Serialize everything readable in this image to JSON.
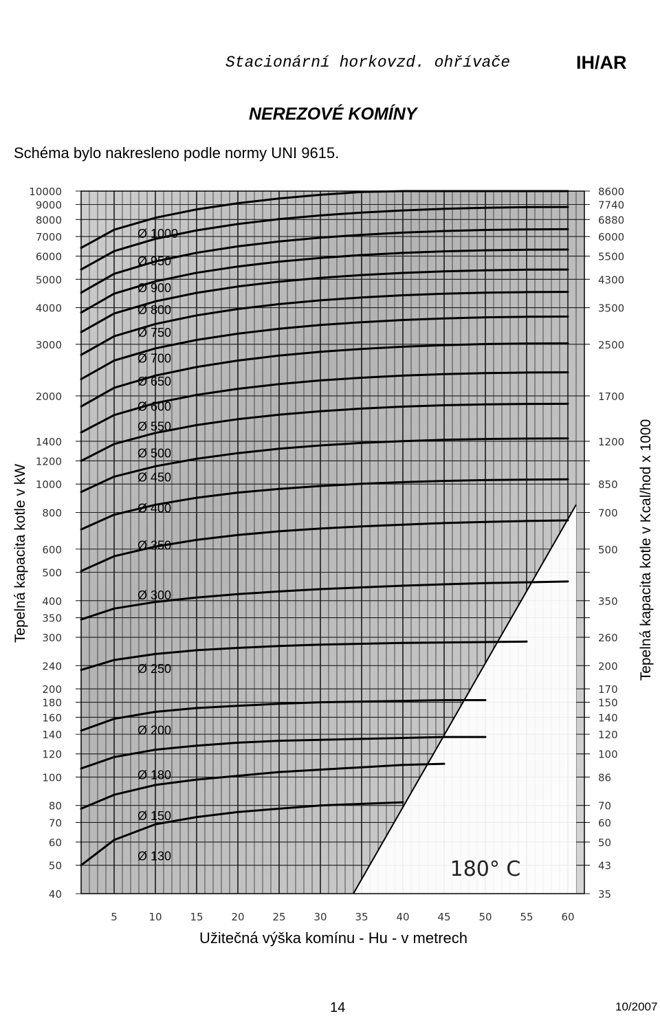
{
  "header": {
    "title": "Stacionární horkovzd. ohřívače",
    "brand": "IH/AR",
    "section": "NEREZOVÉ KOMÍNY",
    "note": "Schéma bylo nakresleno podle normy UNI 9615."
  },
  "footer": {
    "page": "14",
    "date": "10/2007"
  },
  "chart_data": {
    "type": "line",
    "title": "",
    "xlabel": "Užitečná výška komínu - Hu - v metrech",
    "ylabel": "Tepelná kapacita kotle v kW",
    "ylabel_right": "Tepelná kapacita kotle v Kcal/hod x 1000",
    "x_ticks": [
      5,
      10,
      15,
      20,
      25,
      30,
      35,
      40,
      45,
      50,
      55,
      60
    ],
    "xlim": [
      1,
      62
    ],
    "ylim": [
      40,
      10000
    ],
    "y_scale": "log",
    "y_ticks_left": [
      10000,
      9000,
      8000,
      7000,
      6000,
      5000,
      4000,
      3000,
      2000,
      1400,
      1200,
      1000,
      800,
      600,
      500,
      400,
      350,
      300,
      240,
      200,
      180,
      160,
      140,
      120,
      100,
      80,
      70,
      60,
      50,
      40
    ],
    "y_ticks_right": [
      {
        "label": "8600",
        "kw": 10000
      },
      {
        "label": "7740",
        "kw": 9000
      },
      {
        "label": "6880",
        "kw": 8000
      },
      {
        "label": "6000",
        "kw": 7000
      },
      {
        "label": "5500",
        "kw": 6000
      },
      {
        "label": "4300",
        "kw": 5000
      },
      {
        "label": "3500",
        "kw": 4000
      },
      {
        "label": "2500",
        "kw": 3000
      },
      {
        "label": "1700",
        "kw": 2000
      },
      {
        "label": "1200",
        "kw": 1400
      },
      {
        "label": "850",
        "kw": 1000
      },
      {
        "label": "700",
        "kw": 800
      },
      {
        "label": "500",
        "kw": 600
      },
      {
        "label": "350",
        "kw": 400
      },
      {
        "label": "260",
        "kw": 300
      },
      {
        "label": "200",
        "kw": 240
      },
      {
        "label": "170",
        "kw": 200
      },
      {
        "label": "150",
        "kw": 180
      },
      {
        "label": "140",
        "kw": 160
      },
      {
        "label": "120",
        "kw": 140
      },
      {
        "label": "100",
        "kw": 120
      },
      {
        "label": "86",
        "kw": 100
      },
      {
        "label": "70",
        "kw": 80
      },
      {
        "label": "60",
        "kw": 70
      },
      {
        "label": "50",
        "kw": 60
      },
      {
        "label": "43",
        "kw": 50
      },
      {
        "label": "35",
        "kw": 40
      }
    ],
    "grid": true,
    "region_label": "180° C",
    "region_boundary": [
      [
        34,
        40
      ],
      [
        61,
        850
      ]
    ],
    "series": [
      {
        "name": "Ø 130",
        "x": [
          1,
          5,
          10,
          15,
          20,
          25,
          30,
          35,
          40
        ],
        "y": [
          50,
          61,
          69,
          73,
          76,
          78,
          80,
          81,
          82
        ]
      },
      {
        "name": "Ø 150",
        "x": [
          1,
          5,
          10,
          15,
          20,
          25,
          30,
          35,
          40,
          45
        ],
        "y": [
          78,
          87,
          94,
          98,
          101,
          104,
          106,
          108,
          110,
          111
        ]
      },
      {
        "name": "Ø 180",
        "x": [
          1,
          5,
          10,
          15,
          20,
          25,
          30,
          35,
          40,
          45,
          50
        ],
        "y": [
          107,
          117,
          124,
          128,
          131,
          133,
          134,
          135,
          136,
          137,
          137
        ]
      },
      {
        "name": "Ø 200",
        "x": [
          1,
          5,
          10,
          15,
          20,
          25,
          30,
          35,
          40,
          45,
          50
        ],
        "y": [
          144,
          158,
          167,
          172,
          175,
          178,
          180,
          181,
          182,
          183,
          183
        ]
      },
      {
        "name": "Ø 250",
        "x": [
          1,
          5,
          10,
          15,
          20,
          25,
          30,
          35,
          40,
          45,
          50,
          55
        ],
        "y": [
          232,
          251,
          263,
          271,
          276,
          280,
          283,
          285,
          287,
          288,
          289,
          290
        ]
      },
      {
        "name": "Ø 300",
        "x": [
          1,
          5,
          10,
          15,
          20,
          25,
          30,
          35,
          40,
          45,
          50,
          55,
          60
        ],
        "y": [
          345,
          376,
          396,
          410,
          421,
          430,
          438,
          444,
          450,
          455,
          459,
          462,
          465
        ]
      },
      {
        "name": "Ø 350",
        "x": [
          1,
          5,
          10,
          15,
          20,
          25,
          30,
          35,
          40,
          45,
          50,
          55,
          60
        ],
        "y": [
          505,
          567,
          612,
          645,
          670,
          690,
          705,
          717,
          727,
          736,
          743,
          748,
          752
        ]
      },
      {
        "name": "Ø 400",
        "x": [
          1,
          5,
          10,
          15,
          20,
          25,
          30,
          35,
          40,
          45,
          50,
          55,
          60
        ],
        "y": [
          700,
          786,
          850,
          898,
          935,
          963,
          985,
          1002,
          1015,
          1025,
          1032,
          1036,
          1038
        ]
      },
      {
        "name": "Ø 450",
        "x": [
          1,
          5,
          10,
          15,
          20,
          25,
          30,
          35,
          40,
          45,
          50,
          55,
          60
        ],
        "y": [
          940,
          1060,
          1150,
          1220,
          1275,
          1320,
          1355,
          1382,
          1402,
          1416,
          1425,
          1430,
          1432
        ]
      },
      {
        "name": "Ø 500",
        "x": [
          1,
          5,
          10,
          15,
          20,
          25,
          30,
          35,
          40,
          45,
          50,
          55,
          60
        ],
        "y": [
          1200,
          1370,
          1495,
          1590,
          1665,
          1725,
          1773,
          1810,
          1838,
          1858,
          1871,
          1878,
          1880
        ]
      },
      {
        "name": "Ø 550",
        "x": [
          1,
          5,
          10,
          15,
          20,
          25,
          30,
          35,
          40,
          45,
          50,
          55,
          60
        ],
        "y": [
          1500,
          1720,
          1890,
          2015,
          2115,
          2195,
          2258,
          2307,
          2345,
          2373,
          2392,
          2403,
          2407
        ]
      },
      {
        "name": "Ø 600",
        "x": [
          1,
          5,
          10,
          15,
          20,
          25,
          30,
          35,
          40,
          45,
          50,
          55,
          60
        ],
        "y": [
          1840,
          2130,
          2345,
          2510,
          2640,
          2745,
          2828,
          2893,
          2943,
          2980,
          3005,
          3018,
          3022
        ]
      },
      {
        "name": "Ø 650",
        "x": [
          1,
          5,
          10,
          15,
          20,
          25,
          30,
          35,
          40,
          45,
          50,
          55,
          60
        ],
        "y": [
          2280,
          2640,
          2905,
          3105,
          3262,
          3388,
          3490,
          3570,
          3632,
          3677,
          3708,
          3725,
          3730
        ]
      },
      {
        "name": "Ø 700",
        "x": [
          1,
          5,
          10,
          15,
          20,
          25,
          30,
          35,
          40,
          45,
          50,
          55,
          60
        ],
        "y": [
          2760,
          3195,
          3520,
          3765,
          3960,
          4115,
          4238,
          4335,
          4410,
          4465,
          4502,
          4522,
          4530
        ]
      },
      {
        "name": "Ø 750",
        "x": [
          1,
          5,
          10,
          15,
          20,
          25,
          30,
          35,
          40,
          45,
          50,
          55,
          60
        ],
        "y": [
          3300,
          3820,
          4205,
          4495,
          4725,
          4908,
          5055,
          5170,
          5258,
          5323,
          5367,
          5392,
          5400
        ]
      },
      {
        "name": "Ø 800",
        "x": [
          1,
          5,
          10,
          15,
          20,
          25,
          30,
          35,
          40,
          45,
          50,
          55,
          60
        ],
        "y": [
          3850,
          4465,
          4920,
          5262,
          5530,
          5745,
          5915,
          6050,
          6152,
          6228,
          6280,
          6309,
          6318
        ]
      },
      {
        "name": "Ø 900",
        "x": [
          1,
          5,
          10,
          15,
          20,
          25,
          30,
          35,
          40,
          45,
          50,
          55,
          60
        ],
        "y": [
          4500,
          5220,
          5755,
          6158,
          6476,
          6730,
          6932,
          7092,
          7215,
          7306,
          7368,
          7403,
          7413
        ]
      },
      {
        "name": "Ø 950",
        "x": [
          1,
          5,
          10,
          15,
          20,
          25,
          30,
          35,
          40,
          45,
          50,
          55,
          60
        ],
        "y": [
          5400,
          6240,
          6870,
          7345,
          7720,
          8020,
          8258,
          8447,
          8592,
          8700,
          8774,
          8815,
          8828
        ]
      },
      {
        "name": "Ø 1000",
        "x": [
          1,
          5,
          10,
          15,
          20,
          25,
          30,
          35,
          40,
          45,
          50,
          55,
          60
        ],
        "y": [
          6400,
          7380,
          8110,
          8660,
          9095,
          9440,
          9715,
          9932,
          10000,
          10000,
          10000,
          10000,
          10000
        ]
      }
    ],
    "diameter_labels": [
      "Ø 1000",
      "Ø 950",
      "Ø 900",
      "Ø 800",
      "Ø 750",
      "Ø 700",
      "Ø 650",
      "Ø 600",
      "Ø 550",
      "Ø 500",
      "Ø 450",
      "Ø 400",
      "Ø 350",
      "Ø 300",
      "Ø 250",
      "Ø 200",
      "Ø 180",
      "Ø 150",
      "Ø 130"
    ],
    "diameter_label_kw": [
      7200,
      5800,
      4700,
      3950,
      3300,
      2700,
      2250,
      1850,
      1580,
      1280,
      1060,
      830,
      620,
      420,
      235,
      145,
      102,
      74,
      54
    ]
  }
}
